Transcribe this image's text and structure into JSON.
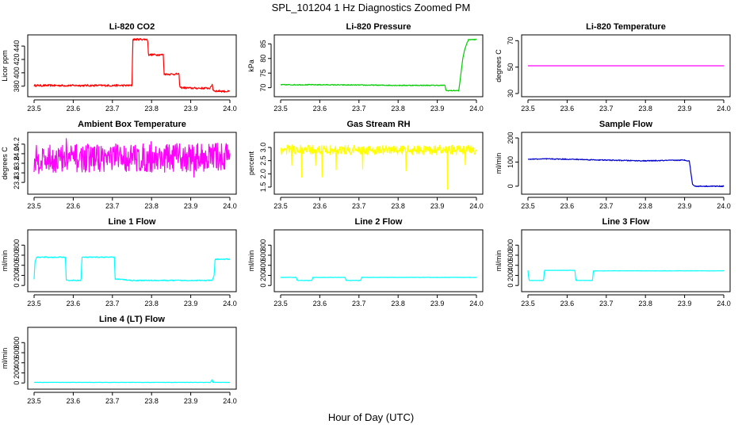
{
  "figure": {
    "title": "SPL_101204  1 Hz Diagnostics Zoomed PM",
    "xlabel": "Hour of Day (UTC)"
  },
  "chart_data": [
    {
      "type": "line",
      "title": "Li-820 CO2",
      "ylabel": "Licor ppm",
      "color": "#ff0000",
      "xlim": [
        23.5,
        24.0
      ],
      "ylim": [
        369,
        452
      ],
      "xticks": [
        23.5,
        23.6,
        23.7,
        23.8,
        23.9,
        24.0
      ],
      "yticks": [
        380,
        400,
        420,
        440
      ],
      "x": [
        23.5,
        23.6,
        23.7,
        23.75,
        23.752,
        23.79,
        23.792,
        23.83,
        23.832,
        23.87,
        23.872,
        23.9,
        23.95,
        23.955,
        23.957,
        23.96,
        24.0
      ],
      "y": [
        381,
        381,
        381,
        381,
        450,
        450,
        427,
        427,
        398,
        398,
        378,
        377,
        377,
        383,
        375,
        373,
        372
      ],
      "noise": 1.5
    },
    {
      "type": "line",
      "title": "Li-820 Pressure",
      "ylabel": "kPa",
      "color": "#00cc00",
      "xlim": [
        23.5,
        24.0
      ],
      "ylim": [
        68,
        87
      ],
      "xticks": [
        23.5,
        23.6,
        23.7,
        23.8,
        23.9,
        24.0
      ],
      "yticks": [
        70,
        75,
        80,
        85
      ],
      "x": [
        23.5,
        23.6,
        23.8,
        23.92,
        23.922,
        23.955,
        23.957,
        23.965,
        23.972,
        23.98,
        24.0
      ],
      "y": [
        71,
        71,
        70.8,
        70.8,
        69,
        69,
        71,
        80,
        84,
        86.5,
        86.5
      ],
      "noise": 0.15
    },
    {
      "type": "line",
      "title": "Li-820 Temperature",
      "ylabel": "degrees C",
      "color": "#ff00ff",
      "xlim": [
        23.5,
        24.0
      ],
      "ylim": [
        30,
        72
      ],
      "xticks": [
        23.5,
        23.6,
        23.7,
        23.8,
        23.9,
        24.0
      ],
      "yticks": [
        30,
        50,
        70
      ],
      "x": [
        23.5,
        24.0
      ],
      "y": [
        51,
        51
      ],
      "noise": 0
    },
    {
      "type": "line",
      "title": "Ambient Box Temperature",
      "ylabel": "degrees C",
      "color": "#ff00ff",
      "xlim": [
        23.5,
        24.0
      ],
      "ylim": [
        23.22,
        24.38
      ],
      "xticks": [
        23.5,
        23.6,
        23.7,
        23.8,
        23.9,
        24.0
      ],
      "yticks": [
        23.4,
        23.6,
        23.8,
        24.0,
        24.2
      ],
      "x": [
        23.5,
        23.6,
        23.7,
        23.8,
        23.9,
        24.0
      ],
      "y": [
        23.88,
        23.9,
        23.92,
        23.9,
        23.92,
        23.95
      ],
      "noise": 0.3
    },
    {
      "type": "line",
      "title": "Gas Stream RH",
      "ylabel": "percent",
      "color": "#ffff00",
      "xlim": [
        23.5,
        24.0
      ],
      "ylim": [
        1.35,
        3.45
      ],
      "xticks": [
        23.5,
        23.6,
        23.7,
        23.8,
        23.9,
        24.0
      ],
      "yticks": [
        1.5,
        2.0,
        2.5,
        3.0
      ],
      "x": [
        23.5,
        23.6,
        23.7,
        23.8,
        23.9,
        24.0
      ],
      "y": [
        2.92,
        2.9,
        2.9,
        2.9,
        2.9,
        2.9
      ],
      "noise": 0.18
    },
    {
      "type": "line",
      "title": "Sample Flow",
      "ylabel": "ml/min",
      "color": "#0000cc",
      "xlim": [
        23.5,
        24.0
      ],
      "ylim": [
        -20,
        210
      ],
      "xticks": [
        23.5,
        23.6,
        23.7,
        23.8,
        23.9,
        24.0
      ],
      "yticks": [
        0,
        100,
        200
      ],
      "x": [
        23.5,
        23.55,
        23.6,
        23.7,
        23.8,
        23.9,
        23.912,
        23.92,
        23.925,
        24.0
      ],
      "y": [
        112,
        113,
        112,
        108,
        105,
        108,
        105,
        10,
        0,
        0
      ],
      "noise": 2
    },
    {
      "type": "line",
      "title": "Line 1 Flow",
      "ylabel": "ml/min",
      "color": "#00ffff",
      "xlim": [
        23.5,
        24.0
      ],
      "ylim": [
        -60,
        1040
      ],
      "xticks": [
        23.5,
        23.6,
        23.7,
        23.8,
        23.9,
        24.0
      ],
      "yticks": [
        0,
        200,
        400,
        600,
        800
      ],
      "x": [
        23.5,
        23.502,
        23.506,
        23.58,
        23.582,
        23.62,
        23.622,
        23.705,
        23.707,
        23.75,
        23.955,
        23.96,
        23.962,
        24.0
      ],
      "y": [
        120,
        450,
        560,
        560,
        100,
        100,
        560,
        560,
        130,
        100,
        100,
        200,
        520,
        520
      ],
      "noise": 10
    },
    {
      "type": "line",
      "title": "Line 2 Flow",
      "ylabel": "ml/min",
      "color": "#00ffff",
      "xlim": [
        23.5,
        24.0
      ],
      "ylim": [
        -60,
        1040
      ],
      "xticks": [
        23.5,
        23.6,
        23.7,
        23.8,
        23.9,
        24.0
      ],
      "yticks": [
        0,
        200,
        400,
        600,
        800
      ],
      "x": [
        23.5,
        23.54,
        23.542,
        23.58,
        23.582,
        23.665,
        23.667,
        23.705,
        23.707,
        24.0
      ],
      "y": [
        160,
        160,
        100,
        100,
        160,
        160,
        100,
        100,
        160,
        160
      ],
      "noise": 4
    },
    {
      "type": "line",
      "title": "Line 3 Flow",
      "ylabel": "ml/min",
      "color": "#00ffff",
      "xlim": [
        23.5,
        24.0
      ],
      "ylim": [
        -60,
        1040
      ],
      "xticks": [
        23.5,
        23.6,
        23.7,
        23.8,
        23.9,
        24.0
      ],
      "yticks": [
        0,
        200,
        400,
        600,
        800
      ],
      "x": [
        23.5,
        23.501,
        23.503,
        23.54,
        23.542,
        23.62,
        23.622,
        23.665,
        23.667,
        24.0
      ],
      "y": [
        300,
        200,
        100,
        100,
        300,
        300,
        100,
        100,
        290,
        290
      ],
      "noise": 3
    },
    {
      "type": "line",
      "title": "Line 4 (LT) Flow",
      "ylabel": "ml/min",
      "color": "#00ffff",
      "xlim": [
        23.5,
        24.0
      ],
      "ylim": [
        -60,
        1040
      ],
      "xticks": [
        23.5,
        23.6,
        23.7,
        23.8,
        23.9,
        24.0
      ],
      "yticks": [
        0,
        200,
        400,
        600,
        800
      ],
      "x": [
        23.5,
        23.95,
        23.955,
        23.957,
        24.0
      ],
      "y": [
        12,
        12,
        70,
        12,
        12
      ],
      "noise": 3
    }
  ]
}
